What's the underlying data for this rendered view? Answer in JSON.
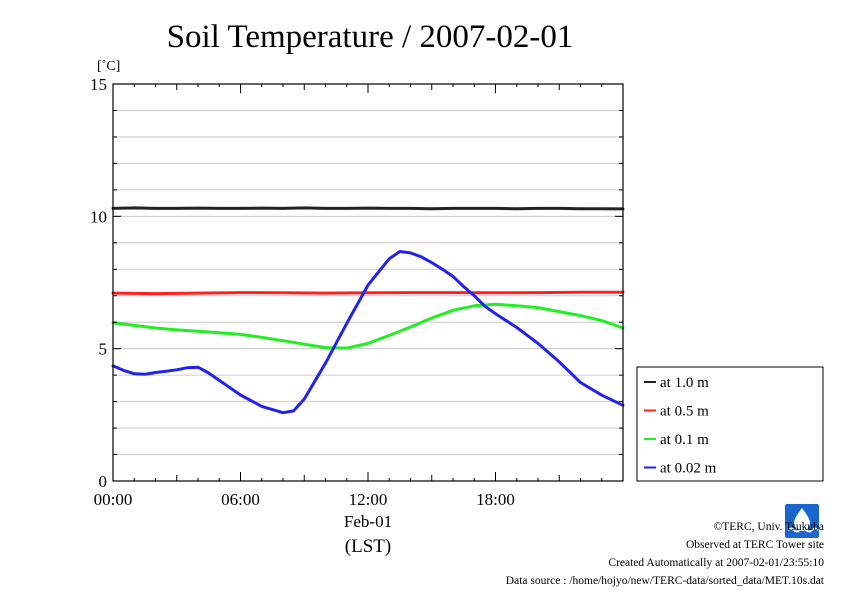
{
  "chart_data": {
    "type": "line",
    "title": "Soil Temperature / 2007-02-01",
    "ylabel": "[˚C]",
    "ylim": [
      0,
      15
    ],
    "yticks": [
      0,
      5,
      10,
      15
    ],
    "xlim": [
      0,
      24
    ],
    "xticks": [
      {
        "hour": 0,
        "label": "00:00"
      },
      {
        "hour": 6,
        "label": "06:00"
      },
      {
        "hour": 12,
        "label": "12:00"
      },
      {
        "hour": 18,
        "label": "18:00"
      }
    ],
    "date_label": "Feb-01",
    "xlabel": "(LST)",
    "grid": "horizontal",
    "legend_position": "right-bottom, outside plot",
    "series": [
      {
        "name": "at 1.0 m",
        "color": "#222222",
        "x": [
          0,
          1,
          2,
          3,
          4,
          5,
          6,
          7,
          8,
          9,
          10,
          11,
          12,
          13,
          14,
          15,
          16,
          17,
          18,
          19,
          20,
          21,
          22,
          23,
          24
        ],
        "y": [
          10.3,
          10.32,
          10.3,
          10.3,
          10.31,
          10.3,
          10.3,
          10.31,
          10.3,
          10.32,
          10.3,
          10.3,
          10.31,
          10.3,
          10.3,
          10.29,
          10.3,
          10.3,
          10.3,
          10.29,
          10.3,
          10.3,
          10.29,
          10.29,
          10.28
        ]
      },
      {
        "name": "at 0.5 m",
        "color": "#ff2020",
        "x": [
          0,
          2,
          4,
          6,
          8,
          10,
          12,
          14,
          16,
          18,
          20,
          22,
          24
        ],
        "y": [
          7.1,
          7.08,
          7.1,
          7.12,
          7.11,
          7.1,
          7.11,
          7.12,
          7.12,
          7.11,
          7.12,
          7.13,
          7.13
        ]
      },
      {
        "name": "at 0.1 m",
        "color": "#22ee22",
        "x": [
          0,
          1,
          2,
          3,
          4,
          5,
          6,
          7,
          8,
          9,
          10,
          11,
          12,
          13,
          14,
          15,
          16,
          17,
          18,
          19,
          20,
          21,
          22,
          23,
          24
        ],
        "y": [
          5.98,
          5.88,
          5.78,
          5.71,
          5.66,
          5.6,
          5.54,
          5.43,
          5.3,
          5.17,
          5.04,
          5.02,
          5.2,
          5.5,
          5.82,
          6.16,
          6.45,
          6.62,
          6.68,
          6.62,
          6.55,
          6.4,
          6.25,
          6.06,
          5.78
        ]
      },
      {
        "name": "at 0.02 m",
        "color": "#2222ee",
        "x": [
          0,
          0.5,
          1,
          1.5,
          2,
          2.5,
          3,
          3.5,
          4,
          4.5,
          5,
          6,
          7,
          8,
          8.5,
          9,
          10,
          11,
          12,
          13,
          13.5,
          14,
          14.5,
          15,
          15.5,
          16,
          16.5,
          17,
          17.5,
          18,
          19,
          20,
          21,
          22,
          23,
          24
        ],
        "y": [
          4.35,
          4.18,
          4.05,
          4.03,
          4.1,
          4.15,
          4.2,
          4.28,
          4.3,
          4.08,
          3.8,
          3.25,
          2.82,
          2.58,
          2.65,
          3.1,
          4.45,
          5.96,
          7.4,
          8.4,
          8.67,
          8.62,
          8.47,
          8.25,
          8.0,
          7.73,
          7.35,
          7.0,
          6.6,
          6.32,
          5.8,
          5.2,
          4.5,
          3.72,
          3.24,
          2.86
        ]
      }
    ]
  },
  "credits": {
    "copyright": "©TERC, Univ. Tsukuba",
    "observed": "Observed at TERC Tower site",
    "created": "Created Automatically at 2007-02-01/23:55:10",
    "source": "Data source : /home/hojyo/new/TERC-data/sorted_data/MET.10s.dat"
  },
  "logo": {
    "text": "TERC",
    "color": "#1a66cc"
  }
}
